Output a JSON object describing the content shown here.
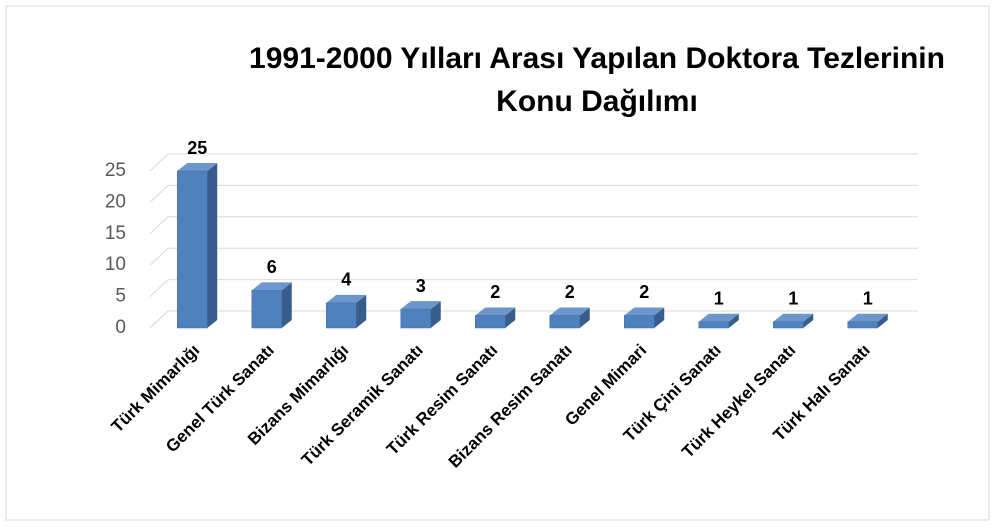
{
  "chart_data": {
    "type": "bar3d",
    "title": "1991-2000 Yılları Arası Yapılan Doktora Tezlerinin Konu Dağılımı",
    "title_lines": [
      "1991-2000 Yılları Arası Yapılan Doktora Tezlerinin",
      "Konu Dağılımı"
    ],
    "categories": [
      "Türk Mimarlığı",
      "Genel Türk Sanatı",
      "Bizans Mimarlığı",
      "Türk Seramik Sanatı",
      "Türk Resim Sanatı",
      "Bizans Resim Sanatı",
      "Genel Mimari",
      "Türk Çini Sanatı",
      "Türk Heykel Sanatı",
      "Türk Halı Sanatı"
    ],
    "values": [
      25,
      6,
      4,
      3,
      2,
      2,
      2,
      1,
      1,
      1
    ],
    "color": "#4f81bd",
    "ylim": [
      0,
      25
    ],
    "yticks": [
      0,
      5,
      10,
      15,
      20,
      25
    ],
    "grid": true
  }
}
